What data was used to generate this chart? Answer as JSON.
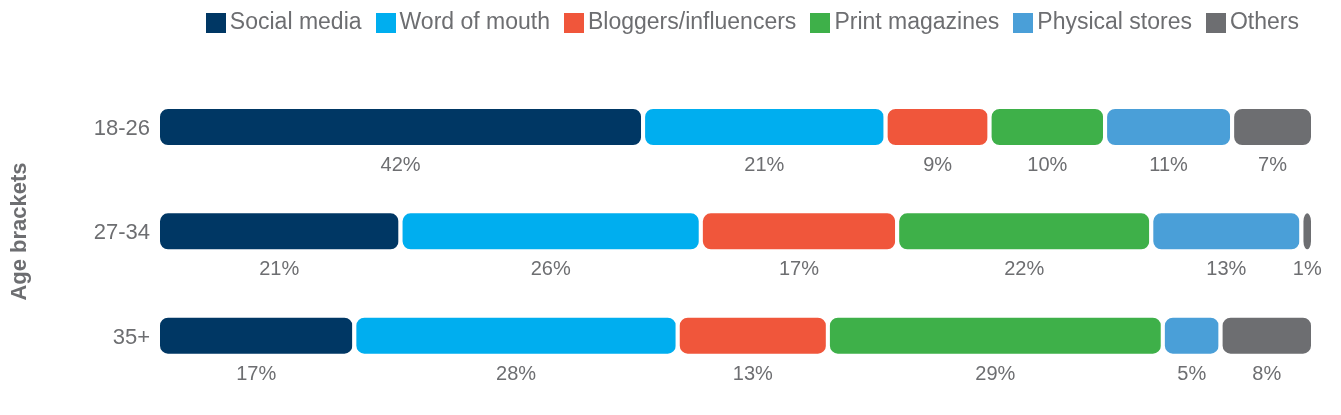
{
  "chart_data": {
    "type": "bar",
    "orientation": "horizontal",
    "stacked": true,
    "ylabel": "Age brackets",
    "legend": "top",
    "categories": [
      "18-26",
      "27-34",
      "35+"
    ],
    "series": [
      {
        "name": "Social media",
        "color": "#003764",
        "values": [
          42,
          21,
          17
        ],
        "value_labels": [
          "42%",
          "21%",
          "17%"
        ]
      },
      {
        "name": "Word of mouth",
        "color": "#00aeef",
        "values": [
          21,
          26,
          28
        ],
        "value_labels": [
          "21%",
          "26%",
          "28%"
        ]
      },
      {
        "name": "Bloggers/influencers",
        "color": "#f0563b",
        "values": [
          9,
          17,
          13
        ],
        "value_labels": [
          "9%",
          "17%",
          "13%"
        ]
      },
      {
        "name": "Print magazines",
        "color": "#3eb049",
        "values": [
          10,
          22,
          29
        ],
        "value_labels": [
          "10%",
          "22%",
          "29%"
        ]
      },
      {
        "name": "Physical stores",
        "color": "#4a9fd8",
        "values": [
          11,
          13,
          5
        ],
        "value_labels": [
          "11%",
          "13%",
          "5%"
        ]
      },
      {
        "name": "Others",
        "color": "#6d6e71",
        "values": [
          7,
          1,
          8
        ],
        "value_labels": [
          "7%",
          "1%",
          "8%"
        ]
      }
    ]
  }
}
